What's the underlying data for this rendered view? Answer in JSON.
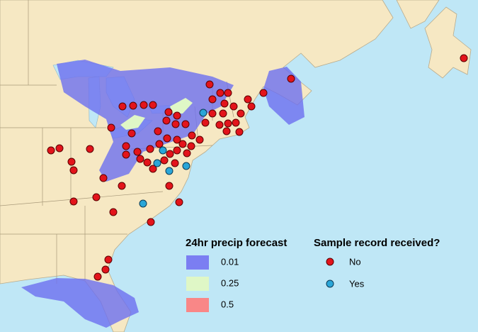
{
  "legend": {
    "precip": {
      "title": "24hr precip forecast",
      "items": [
        "0.01",
        "0.25",
        "0.5"
      ]
    },
    "sample": {
      "title": "Sample record received?",
      "items": [
        "No",
        "Yes"
      ]
    }
  }
}
